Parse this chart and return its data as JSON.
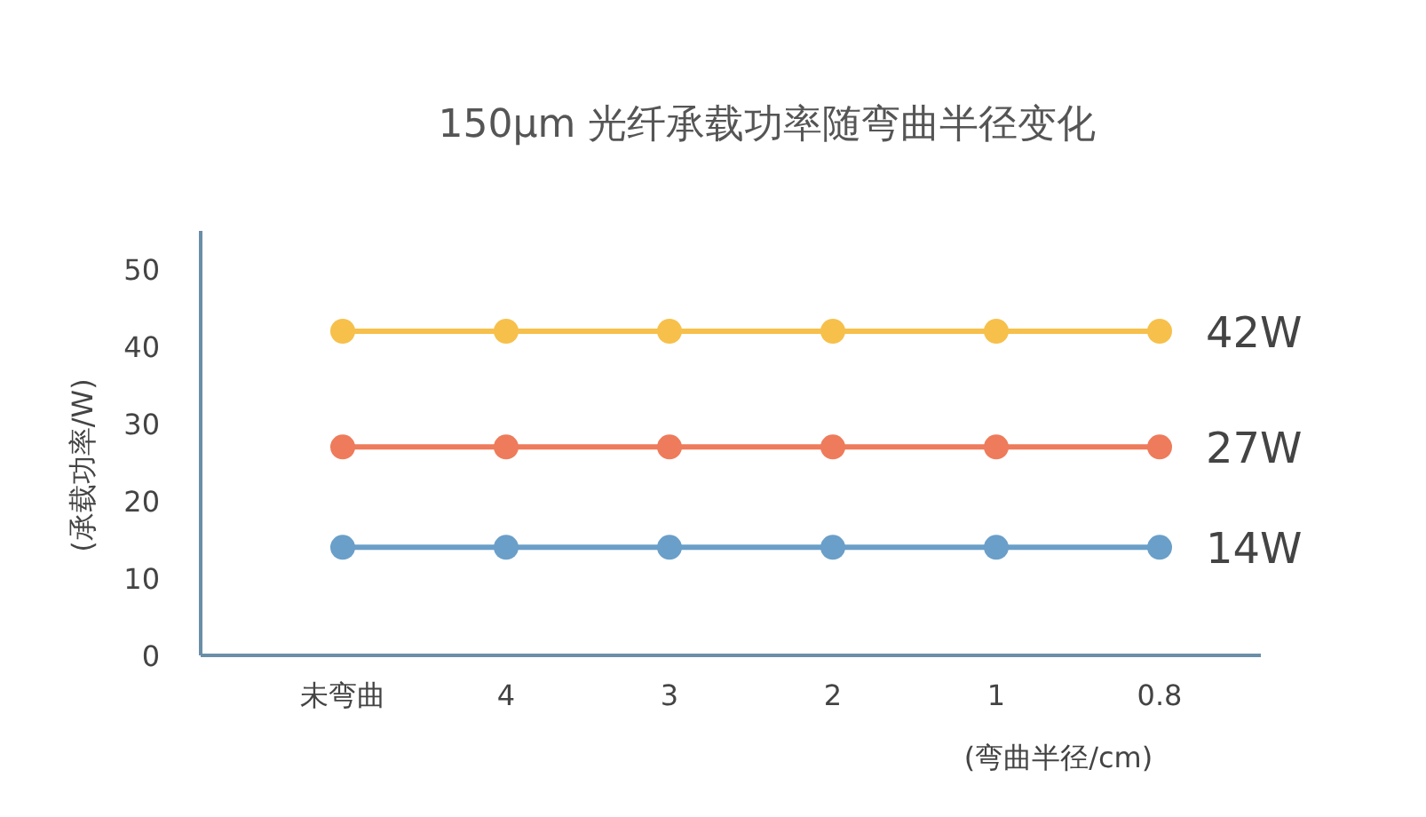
{
  "chart_data": {
    "type": "line",
    "title": "150μm 光纤承载功率随弯曲半径变化",
    "xlabel": "(弯曲半径/cm)",
    "ylabel": "(承载功率/W)",
    "categories": [
      "未弯曲",
      "4",
      "3",
      "2",
      "1",
      "0.8"
    ],
    "series": [
      {
        "color": "#f7c04b",
        "values": [
          42,
          42,
          42,
          42,
          42,
          42
        ],
        "value_labels": [
          null,
          null,
          null,
          null,
          null,
          "42W"
        ]
      },
      {
        "color": "#ee7b5b",
        "values": [
          27,
          27,
          27,
          27,
          27,
          27
        ],
        "value_labels": [
          null,
          null,
          null,
          null,
          null,
          "27W"
        ]
      },
      {
        "color": "#6a9fc9",
        "values": [
          14,
          14,
          14,
          14,
          14,
          14
        ],
        "value_labels": [
          null,
          null,
          null,
          null,
          null,
          "14W"
        ]
      }
    ],
    "ylim": [
      0,
      55
    ],
    "yticks": [
      0,
      10,
      20,
      30,
      40,
      50
    ],
    "marker": "circle",
    "line_style": "solid"
  }
}
